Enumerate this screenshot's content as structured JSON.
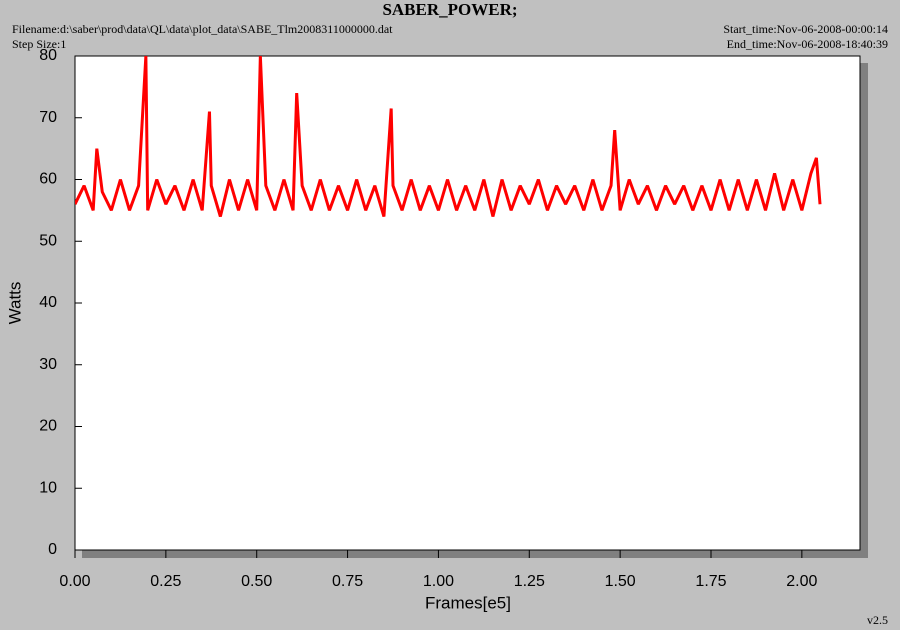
{
  "chart_data": {
    "type": "line",
    "title": "SABER_POWER;",
    "filename": "Filename:d:\\saber\\prod\\data\\QL\\data\\plot_data\\SABE_Tlm2008311000000.dat",
    "step_size": "Step Size:1",
    "start_time": "Start_time:Nov-06-2008-00:00:14",
    "end_time": "End_time:Nov-06-2008-18:40:39",
    "version": "v2.5",
    "x_label": "Frames[e5]",
    "y_label": "Watts",
    "color": "#ff0000",
    "xlim": [
      0,
      2.16
    ],
    "ylim": [
      0,
      80
    ],
    "xticks": [
      {
        "value": 0,
        "label": "0.00"
      },
      {
        "value": 0.25,
        "label": "0.25"
      },
      {
        "value": 0.5,
        "label": "0.50"
      },
      {
        "value": 0.75,
        "label": "0.75"
      },
      {
        "value": 1,
        "label": "1.00"
      },
      {
        "value": 1.25,
        "label": "1.25"
      },
      {
        "value": 1.5,
        "label": "1.50"
      },
      {
        "value": 1.75,
        "label": "1.75"
      },
      {
        "value": 2,
        "label": "2.00"
      }
    ],
    "yticks": [
      0,
      10,
      20,
      30,
      40,
      50,
      60,
      70,
      80
    ],
    "x": [
      0,
      0.025,
      0.05,
      0.06,
      0.075,
      0.1,
      0.125,
      0.15,
      0.175,
      0.195,
      0.2,
      0.225,
      0.25,
      0.275,
      0.3,
      0.325,
      0.35,
      0.37,
      0.375,
      0.4,
      0.425,
      0.45,
      0.475,
      0.5,
      0.51,
      0.525,
      0.55,
      0.575,
      0.6,
      0.61,
      0.625,
      0.65,
      0.675,
      0.7,
      0.725,
      0.75,
      0.775,
      0.8,
      0.825,
      0.85,
      0.87,
      0.875,
      0.9,
      0.925,
      0.95,
      0.975,
      1.0,
      1.025,
      1.05,
      1.075,
      1.1,
      1.125,
      1.15,
      1.175,
      1.2,
      1.225,
      1.25,
      1.275,
      1.3,
      1.325,
      1.35,
      1.375,
      1.4,
      1.425,
      1.45,
      1.475,
      1.485,
      1.5,
      1.525,
      1.55,
      1.575,
      1.6,
      1.625,
      1.65,
      1.675,
      1.7,
      1.725,
      1.75,
      1.775,
      1.8,
      1.825,
      1.85,
      1.875,
      1.9,
      1.925,
      1.95,
      1.975,
      2.0,
      2.025,
      2.04,
      2.05
    ],
    "values": [
      56,
      59,
      55,
      65,
      58,
      55,
      60,
      55,
      59,
      80,
      55,
      60,
      56,
      59,
      55,
      60,
      55,
      71,
      59,
      54,
      60,
      55,
      60,
      55,
      80,
      59,
      55,
      60,
      55,
      74,
      59,
      55,
      60,
      55,
      59,
      55,
      60,
      55,
      59,
      54,
      71.5,
      59,
      55,
      60,
      55,
      59,
      55,
      60,
      55,
      59,
      55,
      60,
      54,
      60,
      55,
      59,
      56,
      60,
      55,
      59,
      56,
      59,
      55,
      60,
      55,
      59,
      68,
      55,
      60,
      56,
      59,
      55,
      59,
      56,
      59,
      55,
      59,
      55,
      60,
      55,
      60,
      55,
      60,
      55,
      61,
      55,
      60,
      55,
      61,
      63.5,
      56
    ]
  }
}
